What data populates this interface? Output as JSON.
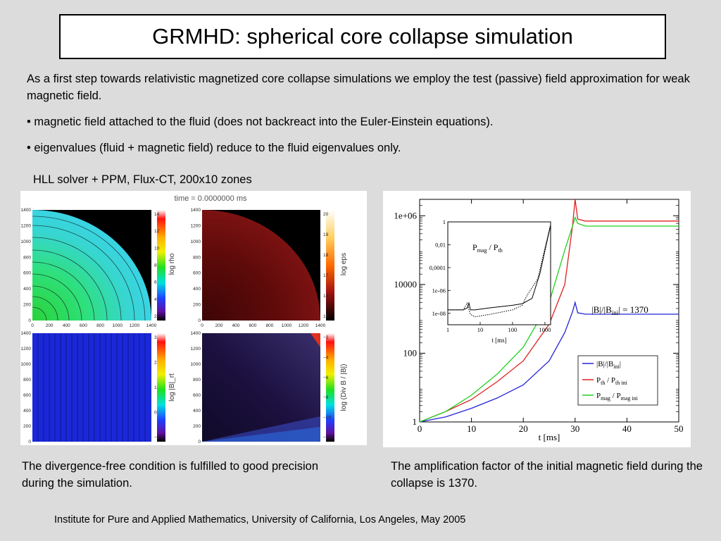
{
  "slide": {
    "title": "GRMHD: spherical core collapse simulation",
    "intro_paragraph": "As a first step towards relativistic magnetized core collapse simulations we employ the test (passive) field approximation for weak magnetic field.",
    "bullet_1": "• magnetic field attached to the fluid (does not backreact into the Euler-Einstein equations).",
    "bullet_2": "• eigenvalues (fluid + magnetic field) reduce to the fluid eigenvalues only.",
    "solver_label": "HLL solver + PPM, Flux-CT, 200x10 zones",
    "caption_left": "The divergence-free condition is fulfilled to good precision during the simulation.",
    "caption_right": "The amplification factor of the initial magnetic field during the collapse is 1370.",
    "footer": "Institute for Pure and Applied Mathematics, University of California, Los Angeles, May 2005"
  },
  "sim_panel": {
    "time_label": "time = 0.0000000 ms",
    "plots": [
      {
        "colorbar_label": "log rho",
        "ticks": [
          "14",
          "12",
          "10",
          "8",
          "6",
          "4",
          "2"
        ],
        "colors": [
          "#3fd1e0",
          "#29e58c",
          "#2cd23a",
          "#1e3fd1"
        ]
      },
      {
        "colorbar_label": "log eps",
        "ticks": [
          "20",
          "19",
          "18",
          "17",
          "16",
          "15"
        ],
        "colors": [
          "#6a0b0b",
          "#3a0505"
        ]
      },
      {
        "colorbar_label": "log |B|_rt",
        "ticks": [
          "3",
          "2",
          "1",
          "0",
          "−1"
        ],
        "colors": [
          "#1a28d8"
        ]
      },
      {
        "colorbar_label": "log (Div B / |B|)",
        "ticks": [
          "−2",
          "−4",
          "−6",
          "−8",
          "−10",
          "−12"
        ],
        "colors": [
          "#221455",
          "#6c4ab0"
        ]
      }
    ],
    "y_ticks": [
      "1400",
      "1200",
      "1000",
      "800",
      "600",
      "400",
      "200",
      "0"
    ],
    "x_ticks": [
      "0",
      "200",
      "400",
      "600",
      "800",
      "1000",
      "1200",
      "1400"
    ]
  },
  "chart_data": [
    {
      "type": "line",
      "xlabel": "t [ms]",
      "ylabel": "",
      "xlim": [
        0,
        50
      ],
      "ylim": [
        1,
        3000000
      ],
      "y_scale": "log",
      "x_ticks": [
        "0",
        "10",
        "20",
        "30",
        "40",
        "50"
      ],
      "y_ticks": [
        "1",
        "100",
        "10000",
        "1e+06"
      ],
      "annotation": "|B|/|B_ini| = 1370",
      "legend_position": "lower-right",
      "series": [
        {
          "name": "|B|/|B_ini|",
          "color": "#2424d8",
          "x": [
            0,
            5,
            10,
            15,
            20,
            25,
            28,
            29.5,
            30,
            30.5,
            32,
            40,
            50
          ],
          "y": [
            1,
            1.4,
            2.5,
            5,
            12,
            60,
            400,
            1600,
            3000,
            1500,
            1370,
            1370,
            1370
          ]
        },
        {
          "name": "P_th / P_th ini",
          "color": "#e02020",
          "x": [
            0,
            5,
            10,
            15,
            20,
            25,
            28,
            29.5,
            30,
            30.5,
            32,
            40,
            50
          ],
          "y": [
            1,
            2,
            4.5,
            15,
            60,
            700,
            10000,
            500000,
            3000000,
            800000,
            700000,
            700000,
            700000
          ]
        },
        {
          "name": "P_mag / P_mag ini",
          "color": "#20d020",
          "x": [
            0,
            5,
            10,
            15,
            20,
            25,
            28,
            29.5,
            30,
            30.5,
            32,
            40,
            50
          ],
          "y": [
            1,
            2,
            6,
            25,
            150,
            3000,
            100000,
            500000,
            900000,
            600000,
            500000,
            500000,
            500000
          ]
        }
      ]
    },
    {
      "type": "line",
      "title": "P_mag / P_th",
      "xlabel": "t [ms]",
      "x_scale": "log",
      "y_scale": "log",
      "xlim": [
        1,
        1500
      ],
      "ylim": [
        1e-09,
        1
      ],
      "x_ticks": [
        "1",
        "10",
        "100",
        "1000"
      ],
      "y_ticks": [
        "1",
        "0,01",
        "0,0001",
        "1e-06",
        "1e-08"
      ],
      "series": [
        {
          "style": "solid",
          "x": [
            1,
            3,
            4,
            4.5,
            5,
            7,
            20,
            100,
            200,
            400,
            700,
            1000,
            1500
          ],
          "y": [
            2e-08,
            2e-08,
            3e-08,
            8e-08,
            2e-08,
            2e-08,
            3e-08,
            5e-08,
            7e-08,
            2e-07,
            3e-05,
            0.003,
            0.5
          ]
        },
        {
          "style": "dotted",
          "x": [
            1,
            3,
            4,
            4.5,
            5,
            7,
            20,
            100,
            200,
            250,
            300,
            600,
            1000,
            1500
          ],
          "y": [
            2e-08,
            2e-08,
            8e-08,
            2e-08,
            8e-09,
            5e-09,
            8e-09,
            2e-08,
            5e-08,
            2e-07,
            5e-07,
            1e-05,
            0.005,
            0.6
          ]
        }
      ]
    }
  ]
}
